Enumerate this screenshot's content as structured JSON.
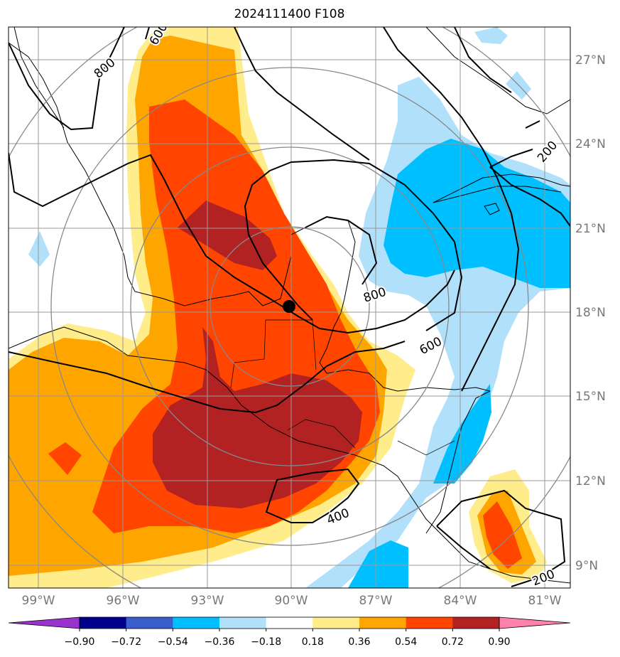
{
  "title": "2024111400 F108",
  "lat_labels": [
    "27°N",
    "24°N",
    "21°N",
    "18°N",
    "15°N",
    "12°N",
    "9°N"
  ],
  "lon_labels": [
    "99°W",
    "96°W",
    "93°W",
    "90°W",
    "87°W",
    "84°W",
    "81°W"
  ],
  "contour_labels": [
    "600",
    "800",
    "800",
    "600",
    "400",
    "200",
    "200"
  ],
  "colorbar": {
    "ticks": [
      "−0.90",
      "−0.72",
      "−0.54",
      "−0.36",
      "−0.18",
      "0.18",
      "0.36",
      "0.54",
      "0.72",
      "0.90"
    ],
    "colors": [
      "#9a32cd",
      "#00008b",
      "#3a5fcd",
      "#00bfff",
      "#b0e0fa",
      "#ffffff",
      "#ffec8b",
      "#ffa500",
      "#ff4500",
      "#b22222",
      "#ff82ab"
    ]
  },
  "center_marker": "storm-center"
}
